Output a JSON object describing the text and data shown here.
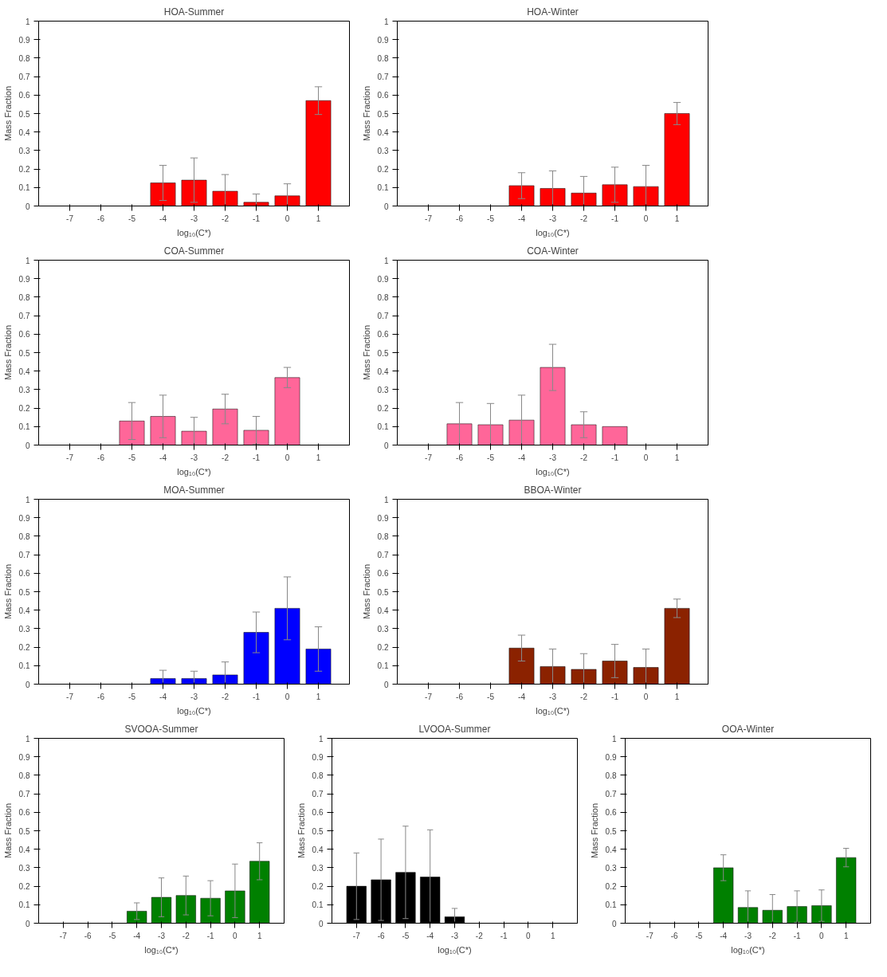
{
  "chart_data": [
    {
      "type": "bar",
      "title": "HOA-Summer",
      "xlabel": "log₁₀(C*)",
      "ylabel": "Mass Fraction",
      "color": "#ff0000",
      "categories": [
        "-7",
        "-6",
        "-5",
        "-4",
        "-3",
        "-2",
        "-1",
        "0",
        "1"
      ],
      "values": [
        null,
        null,
        null,
        0.125,
        0.14,
        0.08,
        0.02,
        0.055,
        0.57
      ],
      "errors": [
        null,
        null,
        null,
        0.095,
        0.12,
        0.09,
        0.045,
        0.065,
        0.075
      ],
      "ylim": [
        0,
        1
      ],
      "yticks": [
        0,
        0.1,
        0.2,
        0.3,
        0.4,
        0.5,
        0.6,
        0.7,
        0.8,
        0.9,
        1
      ]
    },
    {
      "type": "bar",
      "title": "HOA-Winter",
      "xlabel": "log₁₀(C*)",
      "ylabel": "Mass Fraction",
      "color": "#ff0000",
      "categories": [
        "-7",
        "-6",
        "-5",
        "-4",
        "-3",
        "-2",
        "-1",
        "0",
        "1"
      ],
      "values": [
        null,
        null,
        null,
        0.11,
        0.095,
        0.07,
        0.115,
        0.105,
        0.5
      ],
      "errors": [
        null,
        null,
        null,
        0.07,
        0.095,
        0.09,
        0.095,
        0.115,
        0.06
      ],
      "ylim": [
        0,
        1
      ],
      "yticks": [
        0,
        0.1,
        0.2,
        0.3,
        0.4,
        0.5,
        0.6,
        0.7,
        0.8,
        0.9,
        1
      ]
    },
    {
      "type": "bar",
      "title": "COA-Summer",
      "xlabel": "log₁₀(C*)",
      "ylabel": "Mass Fraction",
      "color": "#ff6699",
      "categories": [
        "-7",
        "-6",
        "-5",
        "-4",
        "-3",
        "-2",
        "-1",
        "0",
        "1"
      ],
      "values": [
        null,
        null,
        0.13,
        0.155,
        0.075,
        0.195,
        0.08,
        0.365,
        null
      ],
      "errors": [
        null,
        null,
        0.1,
        0.115,
        0.075,
        0.08,
        0.075,
        0.055,
        null
      ],
      "ylim": [
        0,
        1
      ],
      "yticks": [
        0,
        0.1,
        0.2,
        0.3,
        0.4,
        0.5,
        0.6,
        0.7,
        0.8,
        0.9,
        1
      ]
    },
    {
      "type": "bar",
      "title": "COA-Winter",
      "xlabel": "log₁₀(C*)",
      "ylabel": "Mass Fraction",
      "color": "#ff6699",
      "categories": [
        "-7",
        "-6",
        "-5",
        "-4",
        "-3",
        "-2",
        "-1",
        "0",
        "1"
      ],
      "values": [
        null,
        0.115,
        0.11,
        0.135,
        0.42,
        0.11,
        0.1,
        null,
        null
      ],
      "errors": [
        null,
        0.115,
        0.115,
        0.135,
        0.125,
        0.07,
        null,
        null,
        null
      ],
      "ylim": [
        0,
        1
      ],
      "yticks": [
        0,
        0.1,
        0.2,
        0.3,
        0.4,
        0.5,
        0.6,
        0.7,
        0.8,
        0.9,
        1
      ]
    },
    {
      "type": "bar",
      "title": "MOA-Summer",
      "xlabel": "log₁₀(C*)",
      "ylabel": "Mass Fraction",
      "color": "#0000ff",
      "categories": [
        "-7",
        "-6",
        "-5",
        "-4",
        "-3",
        "-2",
        "-1",
        "0",
        "1"
      ],
      "values": [
        null,
        null,
        null,
        0.03,
        0.03,
        0.05,
        0.28,
        0.41,
        0.19
      ],
      "errors": [
        null,
        null,
        null,
        0.045,
        0.04,
        0.07,
        0.11,
        0.17,
        0.12
      ],
      "ylim": [
        0,
        1
      ],
      "yticks": [
        0,
        0.1,
        0.2,
        0.3,
        0.4,
        0.5,
        0.6,
        0.7,
        0.8,
        0.9,
        1
      ]
    },
    {
      "type": "bar",
      "title": "BBOA-Winter",
      "xlabel": "log₁₀(C*)",
      "ylabel": "Mass Fraction",
      "color": "#8b2200",
      "categories": [
        "-7",
        "-6",
        "-5",
        "-4",
        "-3",
        "-2",
        "-1",
        "0",
        "1"
      ],
      "values": [
        null,
        null,
        null,
        0.195,
        0.095,
        0.08,
        0.125,
        0.09,
        0.41
      ],
      "errors": [
        null,
        null,
        null,
        0.07,
        0.095,
        0.085,
        0.09,
        0.1,
        0.05
      ],
      "ylim": [
        0,
        1
      ],
      "yticks": [
        0,
        0.1,
        0.2,
        0.3,
        0.4,
        0.5,
        0.6,
        0.7,
        0.8,
        0.9,
        1
      ]
    },
    {
      "type": "bar",
      "title": "SVOOA-Summer",
      "xlabel": "log₁₀(C*)",
      "ylabel": "Mass Fraction",
      "color": "#008000",
      "categories": [
        "-7",
        "-6",
        "-5",
        "-4",
        "-3",
        "-2",
        "-1",
        "0",
        "1"
      ],
      "values": [
        null,
        null,
        null,
        0.065,
        0.14,
        0.15,
        0.135,
        0.175,
        0.335
      ],
      "errors": [
        null,
        null,
        null,
        0.045,
        0.105,
        0.105,
        0.095,
        0.145,
        0.1
      ],
      "ylim": [
        0,
        1
      ],
      "yticks": [
        0,
        0.1,
        0.2,
        0.3,
        0.4,
        0.5,
        0.6,
        0.7,
        0.8,
        0.9,
        1
      ]
    },
    {
      "type": "bar",
      "title": "LVOOA-Summer",
      "xlabel": "log₁₀(C*)",
      "ylabel": "Mass Fraction",
      "color": "#000000",
      "categories": [
        "-7",
        "-6",
        "-5",
        "-4",
        "-3",
        "-2",
        "-1",
        "0",
        "1"
      ],
      "values": [
        0.2,
        0.235,
        0.275,
        0.25,
        0.035,
        null,
        null,
        null,
        null
      ],
      "errors": [
        0.18,
        0.22,
        0.25,
        0.255,
        0.045,
        null,
        null,
        null,
        null
      ],
      "ylim": [
        0,
        1
      ],
      "yticks": [
        0,
        0.1,
        0.2,
        0.3,
        0.4,
        0.5,
        0.6,
        0.7,
        0.8,
        0.9,
        1
      ]
    },
    {
      "type": "bar",
      "title": "OOA-Winter",
      "xlabel": "log₁₀(C*)",
      "ylabel": "Mass Fraction",
      "color": "#008000",
      "categories": [
        "-7",
        "-6",
        "-5",
        "-4",
        "-3",
        "-2",
        "-1",
        "0",
        "1"
      ],
      "values": [
        null,
        null,
        null,
        0.3,
        0.085,
        0.07,
        0.09,
        0.095,
        0.355
      ],
      "errors": [
        null,
        null,
        null,
        0.07,
        0.09,
        0.085,
        0.085,
        0.085,
        0.05
      ],
      "ylim": [
        0,
        1
      ],
      "yticks": [
        0,
        0.1,
        0.2,
        0.3,
        0.4,
        0.5,
        0.6,
        0.7,
        0.8,
        0.9,
        1
      ]
    }
  ]
}
